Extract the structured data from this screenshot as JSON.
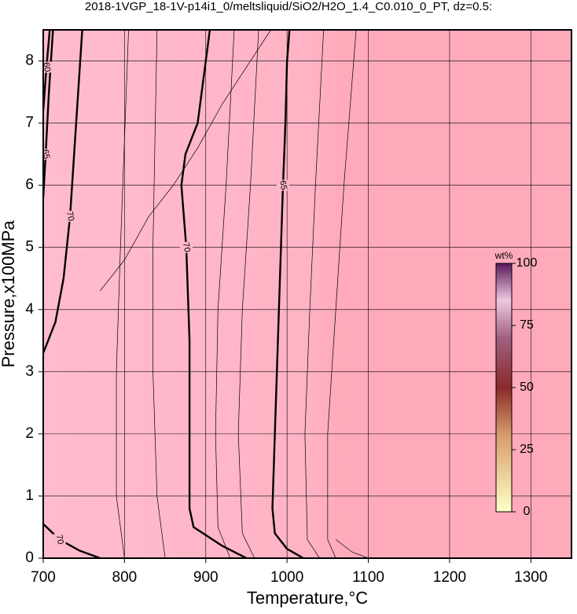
{
  "chart_data": {
    "type": "contour",
    "title": "2018-1VGP_18-1V-p14i1_0/meltsliquid/SiO2/H2O_1.4_C0.010_0_PT, dz=0.5:",
    "x_label": "Temperature,°C",
    "y_label": "Pressure,x100MPa",
    "xlim": [
      700,
      1350
    ],
    "ylim": [
      0,
      8.5
    ],
    "xticks": [
      700,
      800,
      900,
      1000,
      1100,
      1200,
      1300
    ],
    "yticks": [
      0,
      1,
      2,
      3,
      4,
      5,
      6,
      7,
      8
    ],
    "grid": true,
    "contours": [
      {
        "level": 70,
        "x": [
          950,
          920,
          885,
          880,
          880,
          880,
          876,
          870,
          875,
          890,
          900,
          905
        ],
        "y": [
          0,
          0.2,
          0.5,
          0.8,
          2,
          3.5,
          5,
          6,
          6.5,
          7,
          8,
          8.5
        ]
      },
      {
        "level": 65,
        "x": [
          1020,
          1000,
          985,
          982,
          985,
          990,
          995,
          998,
          1000,
          1003
        ],
        "y": [
          0,
          0.15,
          0.4,
          0.8,
          2,
          4,
          6,
          7,
          8,
          8.5
        ]
      },
      {
        "level": 70,
        "x": [
          700,
          715,
          725,
          733,
          738,
          743,
          748
        ],
        "y": [
          3.3,
          3.8,
          4.5,
          5.5,
          6.5,
          7.5,
          8.5
        ]
      },
      {
        "level": 70,
        "x": [
          700,
          720,
          745,
          770
        ],
        "y": [
          0.55,
          0.3,
          0.12,
          0
        ]
      },
      {
        "level": 65,
        "x": [
          700,
          703,
          707,
          712
        ],
        "y": [
          5.8,
          6.5,
          7.5,
          8.5
        ]
      },
      {
        "level": 60,
        "x": [
          700,
          704,
          708
        ],
        "y": [
          7.2,
          7.9,
          8.5
        ]
      }
    ],
    "thin_contours": [
      {
        "x": [
          770,
          800,
          830,
          860,
          890,
          920,
          950,
          980
        ],
        "y": [
          4.3,
          4.8,
          5.5,
          6.0,
          6.6,
          7.3,
          7.9,
          8.5
        ]
      },
      {
        "x": [
          800,
          790,
          790,
          795,
          805
        ],
        "y": [
          0,
          1,
          3,
          5,
          8.5
        ]
      },
      {
        "x": [
          850,
          840,
          835,
          835,
          840
        ],
        "y": [
          0,
          1,
          3,
          5,
          8.5
        ]
      },
      {
        "x": [
          930,
          915,
          912,
          915,
          925,
          935
        ],
        "y": [
          0,
          0.5,
          2,
          4,
          6,
          8.5
        ]
      },
      {
        "x": [
          960,
          945,
          940,
          945,
          955,
          965
        ],
        "y": [
          0,
          0.4,
          2,
          4,
          6,
          8.5
        ]
      },
      {
        "x": [
          1040,
          1025,
          1022,
          1028,
          1035,
          1045
        ],
        "y": [
          0,
          0.3,
          2,
          4,
          6,
          8.5
        ]
      },
      {
        "x": [
          1060,
          1050,
          1050,
          1060,
          1070,
          1085
        ],
        "y": [
          0,
          0.3,
          2,
          4,
          6,
          8.5
        ]
      },
      {
        "x": [
          1100,
          1080,
          1060
        ],
        "y": [
          0,
          0.1,
          0.3
        ]
      }
    ],
    "colorbar": {
      "label": "wt%",
      "lim": [
        0,
        100
      ],
      "ticks": [
        0,
        25,
        50,
        75,
        100
      ]
    }
  }
}
